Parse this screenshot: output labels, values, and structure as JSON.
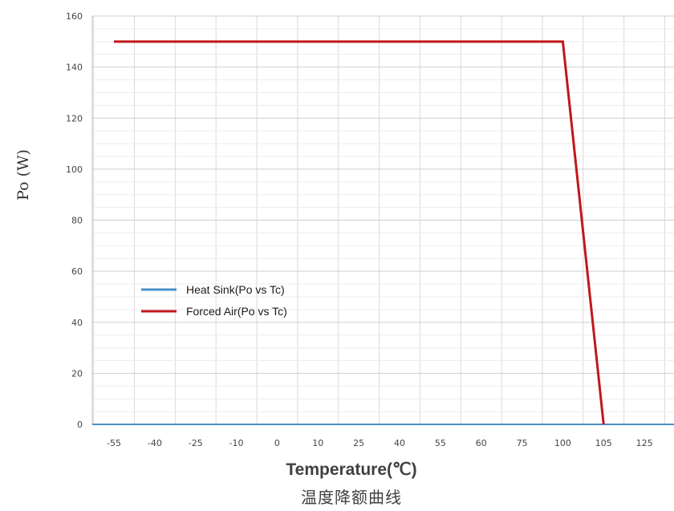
{
  "chart_data": {
    "type": "line",
    "xlabel": "Temperature(℃)",
    "ylabel": "Po (W)",
    "subtitle": "温度降额曲线",
    "x_categories": [
      "-55",
      "-40",
      "-25",
      "-10",
      "0",
      "10",
      "25",
      "40",
      "55",
      "60",
      "75",
      "100",
      "105",
      "125"
    ],
    "ylim": [
      0,
      160
    ],
    "yticks": [
      "0",
      "20",
      "40",
      "60",
      "80",
      "100",
      "120",
      "140",
      "160"
    ],
    "grid": true,
    "legend_position": "left-middle",
    "series": [
      {
        "name": "Heat Sink(Po vs Tc)",
        "color": "#4a90c4",
        "x": [],
        "y": []
      },
      {
        "name": "Forced Air(Po vs Tc)",
        "color": "#c0171b",
        "x": [
          "-55",
          "100",
          "105"
        ],
        "y": [
          150,
          150,
          0
        ]
      }
    ]
  }
}
